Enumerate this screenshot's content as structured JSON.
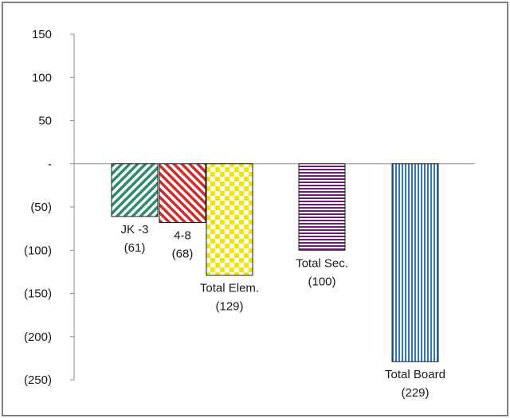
{
  "chart_data": {
    "type": "bar",
    "categories": [
      "JK -3",
      "4-8",
      "Total Elem.",
      "Total Sec.",
      "Total Board"
    ],
    "value_labels": [
      "(61)",
      "(68)",
      "(129)",
      "(100)",
      "(229)"
    ],
    "values": [
      -61,
      -68,
      -129,
      -100,
      -229
    ],
    "ylim": [
      -250,
      150
    ],
    "yticks": [
      150,
      100,
      50,
      0,
      -50,
      -100,
      -150,
      -200,
      -250
    ],
    "ytick_labels": [
      "150",
      "100",
      "50",
      "-",
      "(50)",
      "(100)",
      "(150)",
      "(200)",
      "(250)"
    ],
    "colors": [
      "#2e8b6e",
      "#d42a2a",
      "#f2e600",
      "#6a1f6e",
      "#2e75c4"
    ],
    "patterns": [
      "diagonal-right",
      "diagonal-left",
      "checker",
      "horizontal",
      "vertical"
    ],
    "grid": false,
    "legend": false
  }
}
